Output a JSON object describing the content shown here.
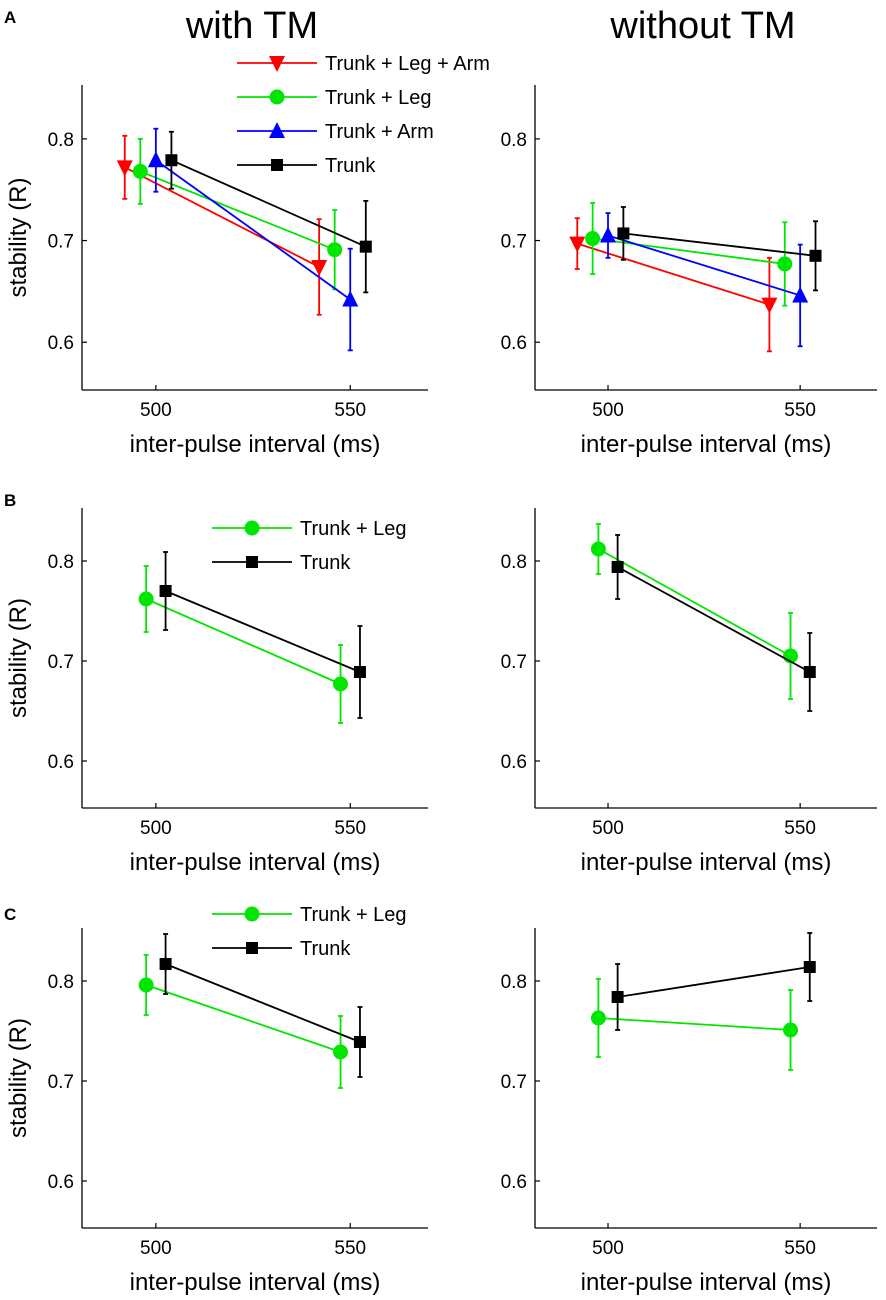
{
  "column_titles": [
    "with TM",
    "without TM"
  ],
  "panel_labels": [
    "A",
    "B",
    "C"
  ],
  "colors": {
    "red": "#ff0000",
    "green": "#00e600",
    "blue": "#0000ff",
    "black": "#000000"
  },
  "chart_data": [
    {
      "id": "A-with",
      "type": "line",
      "panel": "A",
      "column": "with TM",
      "xlabel": "inter-pulse interval (ms)",
      "ylabel": "stability (R)",
      "xlim": [
        481,
        570
      ],
      "ylim": [
        0.553,
        0.853
      ],
      "xticks": [
        500,
        550
      ],
      "xtick_labels": [
        "500",
        "550"
      ],
      "yticks": [
        0.6,
        0.7,
        0.8
      ],
      "ytick_labels": [
        "0.6",
        "0.7",
        "0.8"
      ],
      "legend": "top-center",
      "series": [
        {
          "name": "Trunk + Leg + Arm",
          "color": "#ff0000",
          "marker": "triangle-down",
          "x": [
            492,
            542
          ],
          "y": [
            0.772,
            0.674
          ],
          "err": [
            0.031,
            0.047
          ]
        },
        {
          "name": "Trunk + Leg",
          "color": "#00e600",
          "marker": "circle",
          "x": [
            496,
            546
          ],
          "y": [
            0.768,
            0.691
          ],
          "err": [
            0.032,
            0.039
          ]
        },
        {
          "name": "Trunk + Arm",
          "color": "#0000ff",
          "marker": "triangle-up",
          "x": [
            500,
            550
          ],
          "y": [
            0.779,
            0.642
          ],
          "err": [
            0.031,
            0.05
          ]
        },
        {
          "name": "Trunk",
          "color": "#000000",
          "marker": "square",
          "x": [
            504,
            554
          ],
          "y": [
            0.779,
            0.694
          ],
          "err": [
            0.028,
            0.045
          ]
        }
      ]
    },
    {
      "id": "A-without",
      "type": "line",
      "panel": "A",
      "column": "without TM",
      "xlabel": "inter-pulse interval (ms)",
      "ylabel": "",
      "xlim": [
        481,
        570
      ],
      "ylim": [
        0.553,
        0.853
      ],
      "xticks": [
        500,
        550
      ],
      "xtick_labels": [
        "500",
        "550"
      ],
      "yticks": [
        0.6,
        0.7,
        0.8
      ],
      "ytick_labels": [
        "0.6",
        "0.7",
        "0.8"
      ],
      "legend": "none",
      "series": [
        {
          "name": "Trunk + Leg + Arm",
          "color": "#ff0000",
          "marker": "triangle-down",
          "x": [
            492,
            542
          ],
          "y": [
            0.697,
            0.637
          ],
          "err": [
            0.025,
            0.046
          ]
        },
        {
          "name": "Trunk + Leg",
          "color": "#00e600",
          "marker": "circle",
          "x": [
            496,
            546
          ],
          "y": [
            0.702,
            0.677
          ],
          "err": [
            0.035,
            0.041
          ]
        },
        {
          "name": "Trunk + Arm",
          "color": "#0000ff",
          "marker": "triangle-up",
          "x": [
            500,
            550
          ],
          "y": [
            0.705,
            0.646
          ],
          "err": [
            0.022,
            0.05
          ]
        },
        {
          "name": "Trunk",
          "color": "#000000",
          "marker": "square",
          "x": [
            504,
            554
          ],
          "y": [
            0.707,
            0.685
          ],
          "err": [
            0.026,
            0.034
          ]
        }
      ]
    },
    {
      "id": "B-with",
      "type": "line",
      "panel": "B",
      "column": "with TM",
      "xlabel": "inter-pulse interval (ms)",
      "ylabel": "stability (R)",
      "xlim": [
        481,
        570
      ],
      "ylim": [
        0.553,
        0.853
      ],
      "xticks": [
        500,
        550
      ],
      "xtick_labels": [
        "500",
        "550"
      ],
      "yticks": [
        0.6,
        0.7,
        0.8
      ],
      "ytick_labels": [
        "0.6",
        "0.7",
        "0.8"
      ],
      "legend": "top-right",
      "series": [
        {
          "name": "Trunk + Leg",
          "color": "#00e600",
          "marker": "circle",
          "x": [
            497.5,
            547.5
          ],
          "y": [
            0.762,
            0.677
          ],
          "err": [
            0.033,
            0.039
          ]
        },
        {
          "name": "Trunk",
          "color": "#000000",
          "marker": "square",
          "x": [
            502.5,
            552.5
          ],
          "y": [
            0.77,
            0.689
          ],
          "err": [
            0.039,
            0.046
          ]
        }
      ]
    },
    {
      "id": "B-without",
      "type": "line",
      "panel": "B",
      "column": "without TM",
      "xlabel": "inter-pulse interval (ms)",
      "ylabel": "",
      "xlim": [
        481,
        570
      ],
      "ylim": [
        0.553,
        0.853
      ],
      "xticks": [
        500,
        550
      ],
      "xtick_labels": [
        "500",
        "550"
      ],
      "yticks": [
        0.6,
        0.7,
        0.8
      ],
      "ytick_labels": [
        "0.6",
        "0.7",
        "0.8"
      ],
      "legend": "none",
      "series": [
        {
          "name": "Trunk + Leg",
          "color": "#00e600",
          "marker": "circle",
          "x": [
            497.5,
            547.5
          ],
          "y": [
            0.812,
            0.705
          ],
          "err": [
            0.025,
            0.043
          ]
        },
        {
          "name": "Trunk",
          "color": "#000000",
          "marker": "square",
          "x": [
            502.5,
            552.5
          ],
          "y": [
            0.794,
            0.689
          ],
          "err": [
            0.032,
            0.039
          ]
        }
      ]
    },
    {
      "id": "C-with",
      "type": "line",
      "panel": "C",
      "column": "with TM",
      "xlabel": "inter-pulse interval (ms)",
      "ylabel": "stability (R)",
      "xlim": [
        481,
        570
      ],
      "ylim": [
        0.553,
        0.853
      ],
      "xticks": [
        500,
        550
      ],
      "xtick_labels": [
        "500",
        "550"
      ],
      "yticks": [
        0.6,
        0.7,
        0.8
      ],
      "ytick_labels": [
        "0.6",
        "0.7",
        "0.8"
      ],
      "legend": "top-right",
      "series": [
        {
          "name": "Trunk + Leg",
          "color": "#00e600",
          "marker": "circle",
          "x": [
            497.5,
            547.5
          ],
          "y": [
            0.796,
            0.729
          ],
          "err": [
            0.03,
            0.036
          ]
        },
        {
          "name": "Trunk",
          "color": "#000000",
          "marker": "square",
          "x": [
            502.5,
            552.5
          ],
          "y": [
            0.817,
            0.739
          ],
          "err": [
            0.03,
            0.035
          ]
        }
      ]
    },
    {
      "id": "C-without",
      "type": "line",
      "panel": "C",
      "column": "without TM",
      "xlabel": "inter-pulse interval (ms)",
      "ylabel": "",
      "xlim": [
        481,
        570
      ],
      "ylim": [
        0.553,
        0.853
      ],
      "xticks": [
        500,
        550
      ],
      "xtick_labels": [
        "500",
        "550"
      ],
      "yticks": [
        0.6,
        0.7,
        0.8
      ],
      "ytick_labels": [
        "0.6",
        "0.7",
        "0.8"
      ],
      "legend": "none",
      "series": [
        {
          "name": "Trunk + Leg",
          "color": "#00e600",
          "marker": "circle",
          "x": [
            497.5,
            547.5
          ],
          "y": [
            0.763,
            0.751
          ],
          "err": [
            0.039,
            0.04
          ]
        },
        {
          "name": "Trunk",
          "color": "#000000",
          "marker": "square",
          "x": [
            502.5,
            552.5
          ],
          "y": [
            0.784,
            0.814
          ],
          "err": [
            0.033,
            0.034
          ]
        }
      ]
    }
  ]
}
